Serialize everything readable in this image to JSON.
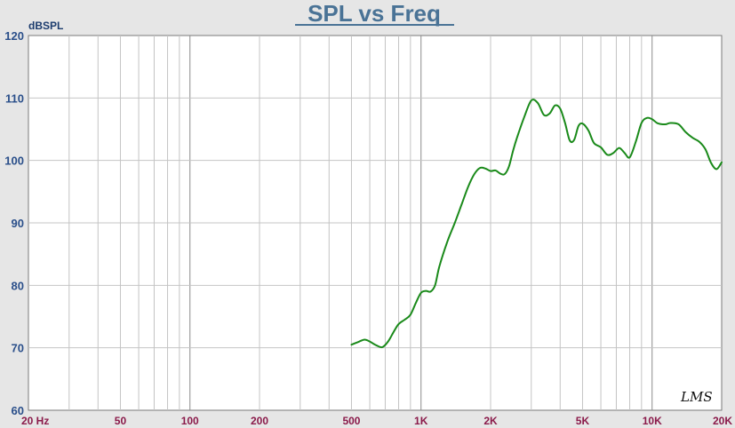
{
  "chart_data": {
    "type": "line",
    "title": "SPL vs Freq",
    "ylabel": "dBSPL",
    "xlabel": "",
    "x_scale": "log",
    "xlim": [
      20,
      20000
    ],
    "ylim": [
      60,
      120
    ],
    "yticks": [
      60,
      70,
      80,
      90,
      100,
      110,
      120
    ],
    "xticks": [
      {
        "value": 20,
        "label": "20  Hz"
      },
      {
        "value": 50,
        "label": "50"
      },
      {
        "value": 100,
        "label": "100"
      },
      {
        "value": 200,
        "label": "200"
      },
      {
        "value": 500,
        "label": "500"
      },
      {
        "value": 1000,
        "label": "1K"
      },
      {
        "value": 2000,
        "label": "2K"
      },
      {
        "value": 5000,
        "label": "5K"
      },
      {
        "value": 10000,
        "label": "10K"
      },
      {
        "value": 20000,
        "label": "20K"
      }
    ],
    "grid": true,
    "series": [
      {
        "color": "#1a8a1a",
        "x": [
          500,
          540,
          570,
          600,
          640,
          680,
          720,
          760,
          800,
          850,
          900,
          950,
          1000,
          1050,
          1100,
          1150,
          1200,
          1300,
          1400,
          1500,
          1600,
          1700,
          1800,
          1900,
          2000,
          2100,
          2200,
          2300,
          2400,
          2500,
          2600,
          2800,
          3000,
          3200,
          3400,
          3600,
          3800,
          4000,
          4200,
          4400,
          4600,
          4800,
          5000,
          5300,
          5600,
          6000,
          6400,
          6800,
          7200,
          7600,
          8000,
          8500,
          9000,
          9500,
          10000,
          10500,
          11000,
          11500,
          12000,
          13000,
          14000,
          15000,
          16000,
          17000,
          18000,
          19000,
          20000
        ],
        "y": [
          70.5,
          71.0,
          71.3,
          71.0,
          70.4,
          70.1,
          71.0,
          72.5,
          73.8,
          74.5,
          75.3,
          77.2,
          78.8,
          79.1,
          79.0,
          80.0,
          83.0,
          87.0,
          90.0,
          93.0,
          95.8,
          97.8,
          98.8,
          98.7,
          98.3,
          98.4,
          97.9,
          97.8,
          99.0,
          101.5,
          103.6,
          107.0,
          109.6,
          109.2,
          107.3,
          107.5,
          108.8,
          108.3,
          106.0,
          103.2,
          103.3,
          105.5,
          105.9,
          104.8,
          102.8,
          102.1,
          100.9,
          101.2,
          102.0,
          101.2,
          100.5,
          103.0,
          106.0,
          106.8,
          106.6,
          106.0,
          105.8,
          105.8,
          106.0,
          105.8,
          104.5,
          103.6,
          103.0,
          101.8,
          99.6,
          98.6,
          99.7
        ]
      }
    ]
  },
  "logo": {
    "text": "LMS"
  }
}
